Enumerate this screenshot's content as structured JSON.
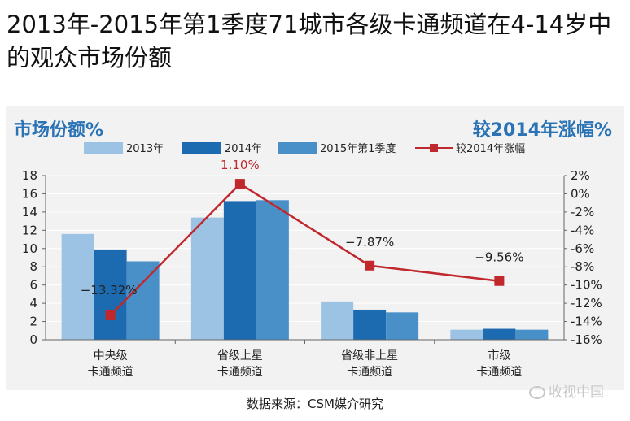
{
  "page": {
    "title": "2013年-2015年第1季度71城市各级卡通频道在4-14岁中的观众市场份额",
    "source": "数据来源：CSM媒介研究",
    "watermark": "收视中国"
  },
  "colors": {
    "s2013": "#9dc3e4",
    "s2014": "#1c6bb0",
    "s2015q1": "#4a90c8",
    "growth": "#c0282d",
    "panel": "#f2f2f2",
    "axis_title": "#2a73b5"
  },
  "chart_data": {
    "type": "bar",
    "title": "",
    "ylabel": "市场份额%",
    "y2label": "较2014年涨幅%",
    "categories": [
      "中央级\n卡通频道",
      "省级上星\n卡通频道",
      "省级非上星\n卡通频道",
      "市级\n卡通频道"
    ],
    "ylim": [
      0,
      18
    ],
    "yticks": [
      0,
      2,
      4,
      6,
      8,
      10,
      12,
      14,
      16,
      18
    ],
    "y2lim": [
      -16,
      2
    ],
    "y2ticks": [
      "2%",
      "0%",
      "-2%",
      "-4%",
      "-6%",
      "-8%",
      "-10%",
      "-12%",
      "-14%",
      "-16%"
    ],
    "series": [
      {
        "name": "2013年",
        "values": [
          11.6,
          13.4,
          4.2,
          1.1
        ]
      },
      {
        "name": "2014年",
        "values": [
          9.9,
          15.2,
          3.3,
          1.2
        ]
      },
      {
        "name": "2015年第1季度",
        "values": [
          8.6,
          15.3,
          3.0,
          1.1
        ]
      }
    ],
    "line": {
      "name": "较2014年涨幅",
      "values": [
        -13.32,
        1.1,
        -7.87,
        -9.56
      ],
      "labels": [
        "−13.32%",
        "1.10%",
        "−7.87%",
        "−9.56%"
      ]
    },
    "legend_position": "top"
  }
}
